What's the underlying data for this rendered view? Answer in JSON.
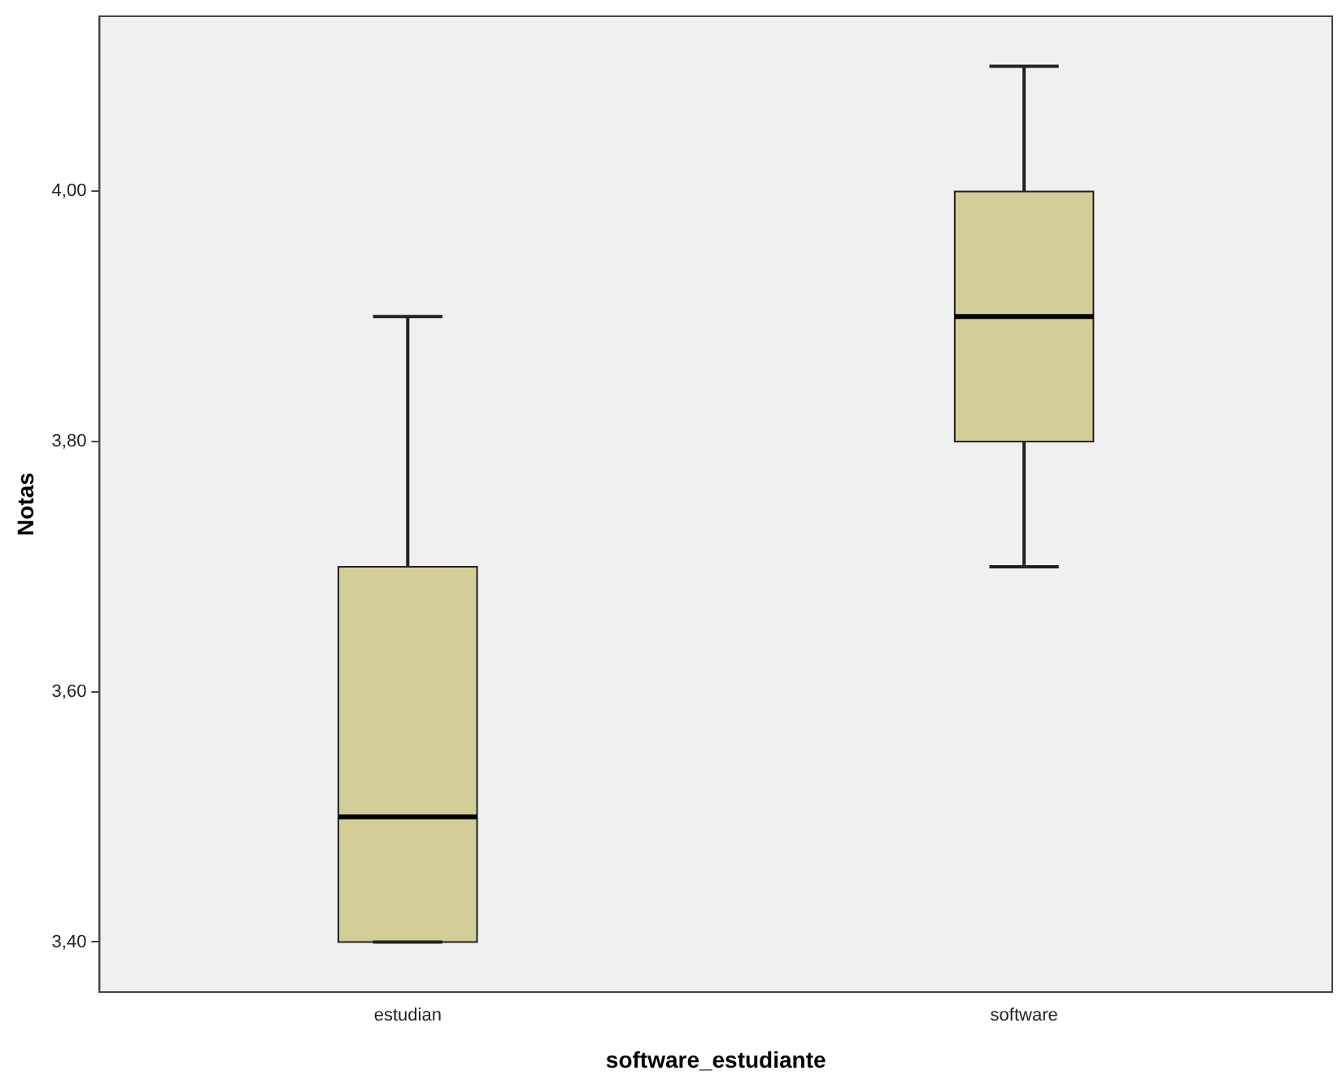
{
  "chart_data": {
    "type": "box",
    "xlabel": "software_estudiante",
    "ylabel": "Notas",
    "categories": [
      "estudian",
      "software"
    ],
    "boxes": [
      {
        "low": 3.4,
        "q1": 3.4,
        "median": 3.5,
        "q3": 3.7,
        "high": 3.9
      },
      {
        "low": 3.7,
        "q1": 3.8,
        "median": 3.9,
        "q3": 4.0,
        "high": 4.1
      }
    ],
    "color": "#d3ce97",
    "ylim": [
      3.36,
      4.14
    ],
    "yticks": [
      {
        "value": 3.4,
        "label": "3,40"
      },
      {
        "value": 3.6,
        "label": "3,60"
      },
      {
        "value": 3.8,
        "label": "3,80"
      },
      {
        "value": 4.0,
        "label": "4,00"
      }
    ],
    "grid": false,
    "legend": false
  }
}
